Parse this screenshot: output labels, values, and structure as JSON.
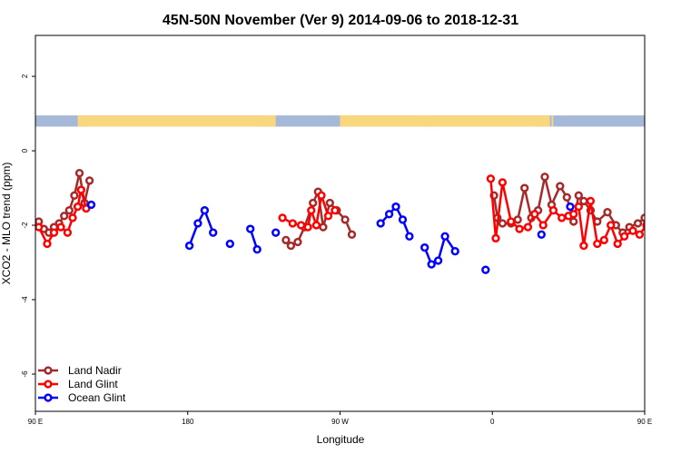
{
  "chart_data": {
    "type": "line",
    "title": "45N-50N November (Ver 9)   2014-09-06 to 2018-12-31",
    "xlabel": "Longitude",
    "ylabel": "XCO2 - MLO trend (ppm)",
    "xlim": [
      90,
      450
    ],
    "ylim": [
      -7,
      3.1
    ],
    "x_ticks": [
      {
        "value": 90,
        "label": "90 E"
      },
      {
        "value": 180,
        "label": "180"
      },
      {
        "value": 270,
        "label": "90 W"
      },
      {
        "value": 360,
        "label": "0"
      },
      {
        "value": 450,
        "label": "90 E"
      },
      {
        "value": 540,
        "label": "180"
      }
    ],
    "y_ticks": [
      {
        "value": 2,
        "label": "2"
      },
      {
        "value": 0,
        "label": "0"
      },
      {
        "value": -2,
        "label": "-2"
      },
      {
        "value": -4,
        "label": "-4"
      },
      {
        "value": -6,
        "label": "-6"
      }
    ],
    "land_band": {
      "y_top": 0.95,
      "y_bottom": 0.65,
      "ocean_color": "#a5b8d8",
      "land_color": "#f9d77e",
      "land_ranges": [
        [
          -90,
          -36
        ],
        [
          -33,
          19
        ],
        [
          115,
          232
        ],
        [
          270,
          394
        ],
        [
          395,
          396
        ]
      ]
    },
    "legend": {
      "placement": "bottom-left",
      "entries": [
        {
          "label": "Land Nadir",
          "color": "#a52a2a"
        },
        {
          "label": "Land Glint",
          "color": "#ff0000"
        },
        {
          "label": "Ocean Glint",
          "color": "#0000ff"
        }
      ]
    },
    "series": [
      {
        "name": "Land Nadir",
        "color": "#a52a2a",
        "segments": [
          [
            [
              92,
              -1.9
            ],
            [
              95,
              -2.1
            ],
            [
              98,
              -2.2
            ],
            [
              101,
              -2.05
            ],
            [
              104,
              -1.95
            ],
            [
              107,
              -1.75
            ],
            [
              110,
              -1.6
            ],
            [
              113,
              -1.2
            ],
            [
              116,
              -0.6
            ],
            [
              119,
              -1.4
            ],
            [
              122,
              -0.8
            ]
          ],
          [
            [
              238,
              -2.4
            ],
            [
              241,
              -2.55
            ],
            [
              245,
              -2.45
            ],
            [
              249,
              -2.05
            ],
            [
              254,
              -1.4
            ],
            [
              257,
              -1.1
            ],
            [
              260,
              -2.05
            ],
            [
              264,
              -1.4
            ],
            [
              268,
              -1.6
            ],
            [
              273,
              -1.85
            ],
            [
              277,
              -2.25
            ]
          ],
          [
            [
              361,
              -1.2
            ],
            [
              363,
              -1.8
            ],
            [
              366,
              -1.95
            ],
            [
              371,
              -1.95
            ],
            [
              375,
              -1.85
            ],
            [
              379,
              -1.0
            ],
            [
              383,
              -1.8
            ],
            [
              387,
              -1.6
            ],
            [
              391,
              -0.7
            ],
            [
              395,
              -1.45
            ],
            [
              400,
              -0.95
            ],
            [
              404,
              -1.25
            ],
            [
              408,
              -1.9
            ],
            [
              411,
              -1.2
            ],
            [
              414,
              -1.35
            ],
            [
              418,
              -1.6
            ],
            [
              422,
              -1.9
            ],
            [
              428,
              -1.65
            ],
            [
              433,
              -2.0
            ],
            [
              437,
              -2.2
            ],
            [
              441,
              -2.05
            ],
            [
              446,
              -1.95
            ],
            [
              450,
              -1.8
            ],
            [
              454,
              -1.6
            ],
            [
              458,
              -1.2
            ],
            [
              463,
              -0.6
            ],
            [
              468,
              -1.45
            ],
            [
              472,
              -0.8
            ]
          ]
        ]
      },
      {
        "name": "Land Glint",
        "color": "#ff0000",
        "segments": [
          [
            [
              92,
              -2.05
            ],
            [
              97,
              -2.5
            ],
            [
              101,
              -2.2
            ],
            [
              105,
              -2.05
            ],
            [
              109,
              -2.2
            ],
            [
              112,
              -1.8
            ],
            [
              115,
              -1.5
            ],
            [
              117,
              -1.05
            ],
            [
              120,
              -1.55
            ]
          ],
          [
            [
              236,
              -1.8
            ],
            [
              242,
              -1.95
            ],
            [
              247,
              -2.0
            ],
            [
              251,
              -2.05
            ],
            [
              253,
              -1.6
            ],
            [
              256,
              -2.0
            ],
            [
              259,
              -1.2
            ],
            [
              263,
              -1.75
            ],
            [
              267,
              -1.6
            ]
          ],
          [
            [
              359,
              -0.75
            ],
            [
              362,
              -2.35
            ],
            [
              366,
              -0.85
            ],
            [
              371,
              -1.9
            ],
            [
              376,
              -2.1
            ],
            [
              381,
              -2.05
            ],
            [
              385,
              -1.7
            ],
            [
              390,
              -2.0
            ],
            [
              396,
              -1.6
            ],
            [
              401,
              -1.8
            ],
            [
              405,
              -1.75
            ],
            [
              408,
              -1.7
            ],
            [
              411,
              -1.5
            ],
            [
              414,
              -2.55
            ],
            [
              418,
              -1.35
            ],
            [
              422,
              -2.5
            ],
            [
              426,
              -2.4
            ],
            [
              430,
              -2.0
            ],
            [
              434,
              -2.5
            ],
            [
              438,
              -2.3
            ],
            [
              443,
              -2.15
            ],
            [
              447,
              -2.25
            ],
            [
              451,
              -2.0
            ],
            [
              455,
              -1.75
            ],
            [
              459,
              -1.5
            ],
            [
              462,
              -1.1
            ],
            [
              466,
              -1.55
            ]
          ]
        ]
      },
      {
        "name": "Ocean Glint",
        "color": "#0000ff",
        "segments": [
          [
            [
              123,
              -1.45
            ]
          ],
          [
            [
              181,
              -2.55
            ],
            [
              186,
              -1.95
            ],
            [
              190,
              -1.6
            ],
            [
              195,
              -2.2
            ]
          ],
          [
            [
              205,
              -2.5
            ]
          ],
          [
            [
              217,
              -2.1
            ],
            [
              221,
              -2.65
            ]
          ],
          [
            [
              232,
              -2.2
            ]
          ],
          [
            [
              294,
              -1.95
            ],
            [
              299,
              -1.7
            ],
            [
              303,
              -1.5
            ],
            [
              307,
              -1.85
            ],
            [
              311,
              -2.3
            ]
          ],
          [
            [
              320,
              -2.6
            ],
            [
              324,
              -3.05
            ],
            [
              328,
              -2.95
            ],
            [
              332,
              -2.3
            ],
            [
              338,
              -2.7
            ]
          ],
          [
            [
              356,
              -3.2
            ]
          ],
          [
            [
              389,
              -2.25
            ]
          ],
          [
            [
              406,
              -1.5
            ]
          ],
          [
            [
              477,
              -1.45
            ]
          ]
        ]
      }
    ]
  }
}
